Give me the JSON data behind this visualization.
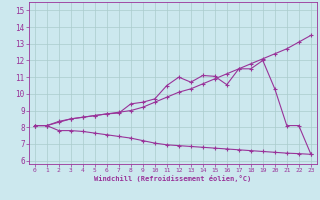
{
  "xlabel": "Windchill (Refroidissement éolien,°C)",
  "bg_color": "#cce8ee",
  "grid_color": "#aacccc",
  "line_color": "#993399",
  "xlim": [
    -0.5,
    23.5
  ],
  "ylim": [
    5.8,
    15.5
  ],
  "xticks": [
    0,
    1,
    2,
    3,
    4,
    5,
    6,
    7,
    8,
    9,
    10,
    11,
    12,
    13,
    14,
    15,
    16,
    17,
    18,
    19,
    20,
    21,
    22,
    23
  ],
  "yticks": [
    6,
    7,
    8,
    9,
    10,
    11,
    12,
    13,
    14,
    15
  ],
  "line1_x": [
    0,
    1,
    2,
    3,
    4,
    5,
    6,
    7,
    8,
    9,
    10,
    11,
    12,
    13,
    14,
    15,
    16,
    17,
    18,
    19,
    20,
    21,
    22,
    23
  ],
  "line1_y": [
    8.1,
    8.1,
    7.8,
    7.8,
    7.75,
    7.65,
    7.55,
    7.45,
    7.35,
    7.2,
    7.05,
    6.95,
    6.9,
    6.85,
    6.8,
    6.75,
    6.7,
    6.65,
    6.6,
    6.55,
    6.5,
    6.45,
    6.42,
    6.38
  ],
  "line2_x": [
    0,
    1,
    2,
    3,
    4,
    5,
    6,
    7,
    8,
    9,
    10,
    11,
    12,
    13,
    14,
    15,
    16,
    17,
    18,
    19,
    20,
    21,
    22,
    23
  ],
  "line2_y": [
    8.1,
    8.1,
    8.35,
    8.5,
    8.6,
    8.7,
    8.8,
    8.85,
    9.4,
    9.5,
    9.7,
    10.5,
    11.0,
    10.7,
    11.1,
    11.05,
    10.55,
    11.5,
    11.5,
    12.0,
    10.3,
    8.1,
    8.1,
    6.4
  ],
  "line3_x": [
    0,
    1,
    2,
    3,
    4,
    5,
    6,
    7,
    8,
    9,
    10,
    11,
    12,
    13,
    14,
    15,
    16,
    17,
    18,
    19,
    20,
    21,
    22,
    23
  ],
  "line3_y": [
    8.1,
    8.1,
    8.3,
    8.5,
    8.6,
    8.7,
    8.8,
    8.9,
    9.0,
    9.2,
    9.5,
    9.8,
    10.1,
    10.3,
    10.6,
    10.9,
    11.2,
    11.5,
    11.8,
    12.1,
    12.4,
    12.7,
    13.1,
    13.5
  ]
}
